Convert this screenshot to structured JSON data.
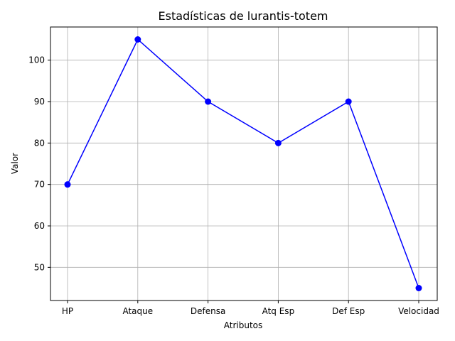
{
  "chart_data": {
    "type": "line",
    "title": "Estadísticas de lurantis-totem",
    "xlabel": "Atributos",
    "ylabel": "Valor",
    "categories": [
      "HP",
      "Ataque",
      "Defensa",
      "Atq Esp",
      "Def Esp",
      "Velocidad"
    ],
    "series": [
      {
        "values": [
          70,
          105,
          90,
          80,
          90,
          45
        ],
        "color": "#0000ff",
        "marker": "circle"
      }
    ],
    "ylim": [
      42,
      108
    ],
    "yticks": [
      50,
      60,
      70,
      80,
      90,
      100
    ],
    "grid": true
  }
}
